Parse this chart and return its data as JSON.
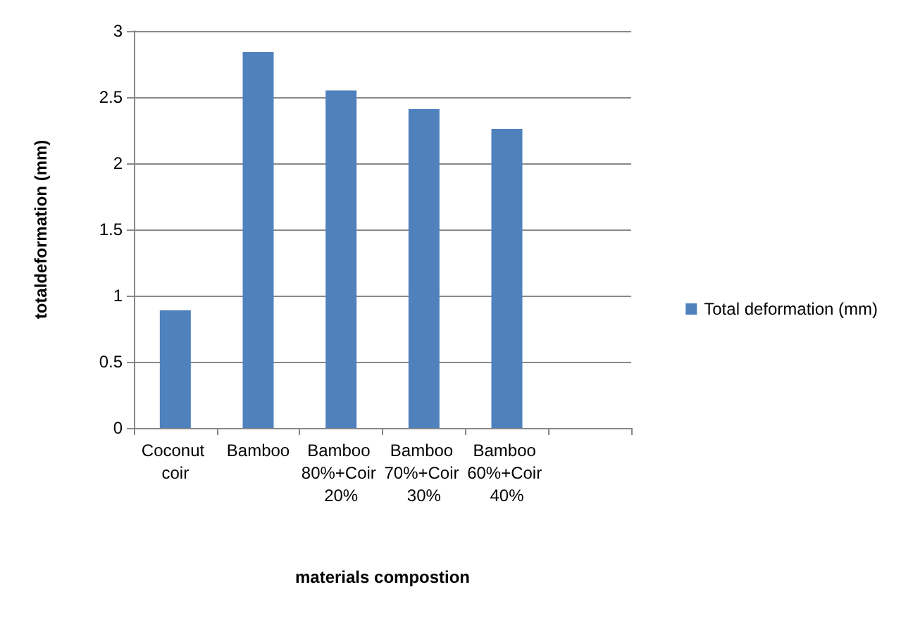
{
  "chart_data": {
    "type": "bar",
    "categories": [
      "Coconut coir",
      "Bamboo",
      "Bamboo 80%+Coir 20%",
      "Bamboo 70%+Coir 30%",
      "Bamboo 60%+Coir 40%",
      null
    ],
    "series": [
      {
        "name": "Total deformation (mm)",
        "color": "#4f81bd",
        "values": [
          0.89,
          2.84,
          2.55,
          2.41,
          2.26,
          null
        ]
      }
    ],
    "xlabel": "materials compostion",
    "ylabel": "totaldeformation (mm)",
    "ylim": [
      0,
      3
    ],
    "yticks": [
      0,
      0.5,
      1,
      1.5,
      2,
      2.5,
      3
    ],
    "grid": "y",
    "legend": "right"
  }
}
